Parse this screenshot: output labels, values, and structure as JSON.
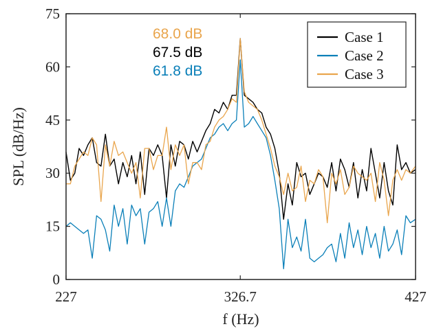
{
  "chart_data": {
    "type": "line",
    "xlabel": "f (Hz)",
    "ylabel": "SPL (dB/Hz)",
    "xlim": [
      227,
      427
    ],
    "ylim": [
      0,
      75
    ],
    "x_ticks": [
      227,
      326.7,
      427
    ],
    "x_tick_labels": [
      "227",
      "326.7",
      "427"
    ],
    "y_ticks": [
      0,
      15,
      30,
      45,
      60,
      75
    ],
    "y_tick_labels": [
      "0",
      "15",
      "30",
      "45",
      "60",
      "75"
    ],
    "grid": false,
    "legend_position": "top-right",
    "x": [
      227,
      229.5,
      232,
      234.5,
      237,
      239.5,
      242,
      244.5,
      247,
      249.5,
      252,
      254.5,
      257,
      259.5,
      262,
      264.5,
      267,
      269.5,
      272,
      274.5,
      277,
      279.5,
      282,
      284.5,
      287,
      289.5,
      292,
      294.5,
      297,
      299.5,
      302,
      304.5,
      307,
      309.5,
      312,
      314.5,
      317,
      319.5,
      322,
      324.5,
      326.7,
      329,
      331.5,
      334,
      336.5,
      339,
      341.5,
      344,
      346.5,
      349,
      351.5,
      354,
      356.5,
      359,
      361.5,
      364,
      366.5,
      369,
      371.5,
      374,
      376.5,
      379,
      381.5,
      384,
      386.5,
      389,
      391.5,
      394,
      396.5,
      399,
      401.5,
      404,
      406.5,
      409,
      411.5,
      414,
      416.5,
      419,
      421.5,
      424,
      427
    ],
    "series": [
      {
        "name": "Case 1",
        "color": "#000000",
        "values": [
          36,
          28,
          30,
          37,
          35,
          38,
          40,
          33,
          32,
          41,
          32,
          34,
          27,
          33,
          29,
          35,
          27,
          36,
          24,
          37,
          35,
          38,
          35,
          23,
          38,
          32,
          39,
          38,
          34,
          39,
          36,
          39,
          42,
          44,
          48,
          47,
          50,
          48,
          52,
          52,
          68,
          52,
          51,
          50,
          48,
          47,
          43,
          41,
          37,
          30,
          17,
          27,
          21,
          33,
          29,
          30,
          24,
          27,
          30,
          29,
          26,
          33,
          25,
          34,
          31,
          26,
          33,
          23,
          31,
          25,
          37,
          30,
          23,
          33,
          25,
          21,
          38,
          31,
          33,
          30,
          31
        ],
        "swatch": "#000000"
      },
      {
        "name": "Case 2",
        "color": "#0a7fb8",
        "values": [
          15,
          16,
          15,
          14,
          13,
          14,
          6,
          18,
          17,
          14,
          8,
          21,
          15,
          20,
          10,
          21,
          18,
          20,
          10,
          19,
          20,
          22,
          15,
          23,
          15,
          25,
          27,
          26,
          29,
          32,
          33,
          34,
          37,
          40,
          41,
          43,
          44,
          42,
          44,
          45,
          62,
          43,
          44,
          46,
          44,
          42,
          40,
          35,
          28,
          20,
          3,
          17,
          9,
          12,
          8,
          17,
          6,
          5,
          6,
          7,
          9,
          10,
          5,
          13,
          6,
          16,
          9,
          14,
          7,
          15,
          9,
          13,
          6,
          15,
          8,
          10,
          14,
          7,
          18,
          16,
          17
        ]
      },
      {
        "name": "Case 3",
        "color": "#e9a54c",
        "values": [
          27,
          27,
          32,
          34,
          36,
          35,
          40,
          38,
          22,
          38,
          32,
          39,
          35,
          36,
          33,
          30,
          33,
          23,
          37,
          37,
          31,
          35,
          35,
          43,
          31,
          38,
          35,
          38,
          27,
          33,
          33,
          31,
          38,
          39,
          43,
          45,
          46,
          48,
          51,
          50,
          68,
          53,
          50,
          49,
          48,
          45,
          41,
          37,
          32,
          29,
          24,
          30,
          25,
          26,
          32,
          22,
          28,
          27,
          31,
          29,
          16,
          30,
          27,
          31,
          24,
          26,
          32,
          30,
          29,
          28,
          30,
          22,
          33,
          28,
          18,
          28,
          31,
          28,
          31,
          30,
          32
        ]
      }
    ],
    "annotations": [
      {
        "text": "68.0 dB",
        "color": "#e9a54c"
      },
      {
        "text": "67.5 dB",
        "color": "#000000"
      },
      {
        "text": "61.8 dB",
        "color": "#0a7fb8"
      }
    ]
  }
}
